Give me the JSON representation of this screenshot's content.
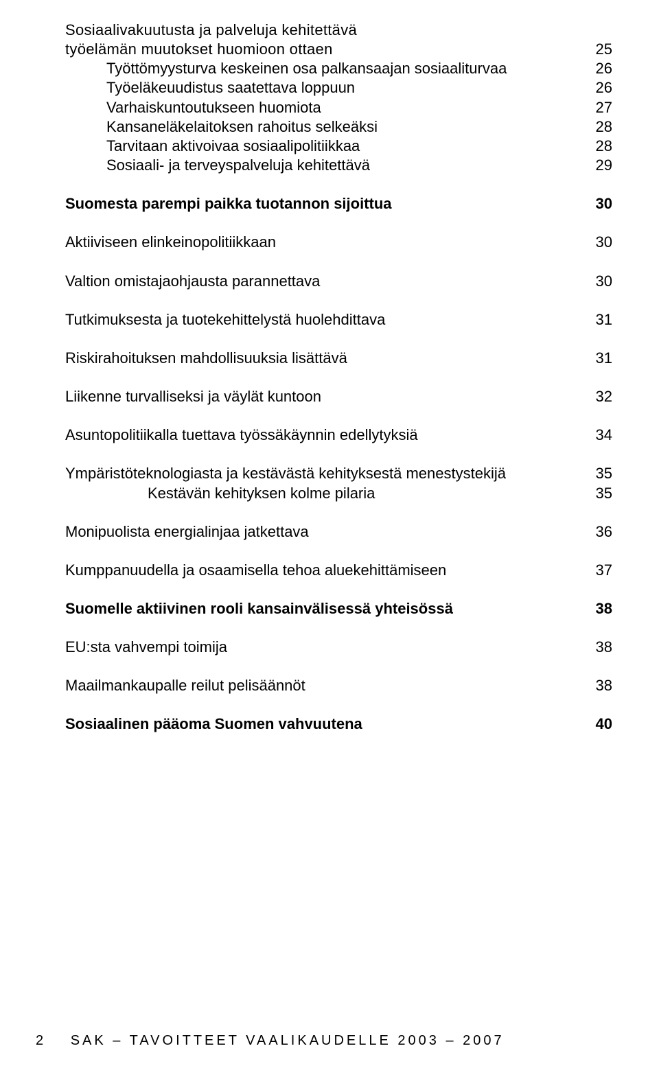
{
  "toc": {
    "rows": [
      {
        "label": "Sosiaalivakuutusta ja palveluja kehitettävä",
        "page": "",
        "indent": 0,
        "bold": false,
        "style": "letter-spacing:0.3px"
      },
      {
        "label": "työelämän muutokset huomioon ottaen",
        "page": "25",
        "indent": 0,
        "bold": false,
        "style": "letter-spacing:0.3px"
      },
      {
        "label": "Työttömyysturva keskeinen osa palkansaajan sosiaaliturvaa",
        "page": "26",
        "indent": 1,
        "bold": false
      },
      {
        "label": "Työeläkeuudistus saatettava loppuun",
        "page": "26",
        "indent": 1,
        "bold": false
      },
      {
        "label": "Varhaiskuntoutukseen huomiota",
        "page": "27",
        "indent": 1,
        "bold": false
      },
      {
        "label": "Kansaneläkelaitoksen rahoitus selkeäksi",
        "page": "28",
        "indent": 1,
        "bold": false
      },
      {
        "label": "Tarvitaan aktivoivaa sosiaalipolitiikkaa",
        "page": "28",
        "indent": 1,
        "bold": false
      },
      {
        "label": "Sosiaali- ja terveyspalveluja kehitettävä",
        "page": "29",
        "indent": 1,
        "bold": false
      },
      {
        "gap": true
      },
      {
        "label": "Suomesta parempi paikka tuotannon sijoittua",
        "page": "30",
        "indent": 0,
        "bold": true
      },
      {
        "gap": true
      },
      {
        "label": "Aktiiviseen elinkeinopolitiikkaan",
        "page": "30",
        "indent": 0,
        "bold": false
      },
      {
        "gap": true
      },
      {
        "label": "Valtion omistajaohjausta parannettava",
        "page": "30",
        "indent": 0,
        "bold": false
      },
      {
        "gap": true
      },
      {
        "label": "Tutkimuksesta ja tuotekehittelystä huolehdittava",
        "page": "31",
        "indent": 0,
        "bold": false
      },
      {
        "gap": true
      },
      {
        "label": "Riskirahoituksen mahdollisuuksia lisättävä",
        "page": "31",
        "indent": 0,
        "bold": false
      },
      {
        "gap": true
      },
      {
        "label": "Liikenne turvalliseksi ja väylät kuntoon",
        "page": "32",
        "indent": 0,
        "bold": false
      },
      {
        "gap": true
      },
      {
        "label": "Asuntopolitiikalla tuettava työssäkäynnin edellytyksiä",
        "page": "34",
        "indent": 0,
        "bold": false
      },
      {
        "gap": true
      },
      {
        "label": "Ympäristöteknologiasta ja kestävästä kehityksestä menestystekijä",
        "page": "35",
        "indent": 0,
        "bold": false
      },
      {
        "label": "Kestävän kehityksen kolme pilaria",
        "page": "35",
        "indent": 2,
        "bold": false
      },
      {
        "gap": true
      },
      {
        "label": "Monipuolista energialinjaa jatkettava",
        "page": "36",
        "indent": 0,
        "bold": false
      },
      {
        "gap": true
      },
      {
        "label": "Kumppanuudella ja osaamisella tehoa aluekehittämiseen",
        "page": "37",
        "indent": 0,
        "bold": false
      },
      {
        "gap": true
      },
      {
        "label": "Suomelle aktiivinen rooli kansainvälisessä yhteisössä",
        "page": "38",
        "indent": 0,
        "bold": true
      },
      {
        "gap": true
      },
      {
        "label": "EU:sta vahvempi toimija",
        "page": "38",
        "indent": 0,
        "bold": false
      },
      {
        "gap": true
      },
      {
        "label": "Maailmankaupalle reilut pelisäännöt",
        "page": "38",
        "indent": 0,
        "bold": false
      },
      {
        "gap": true
      },
      {
        "label": "Sosiaalinen pääoma Suomen vahvuutena",
        "page": "40",
        "indent": 0,
        "bold": true
      }
    ]
  },
  "footer": {
    "page_number": "2",
    "text": "SAK – TAVOITTEET VAALIKAUDELLE 2003 – 2007"
  }
}
